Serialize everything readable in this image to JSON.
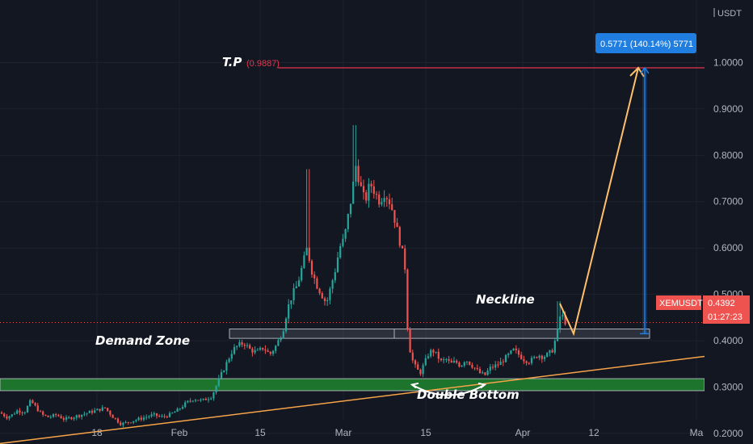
{
  "currency_label": "USDT",
  "chart_data": {
    "type": "candlestick",
    "symbol": "XEMUSDT",
    "last_price": "0.4392",
    "countdown": "01:27:23",
    "y_ticks": [
      "0.2000",
      "0.3000",
      "0.4000",
      "0.5000",
      "0.6000",
      "0.7000",
      "0.8000",
      "0.9000",
      "1.0000"
    ],
    "ylim": [
      0.177,
      1.135
    ],
    "x_ticks": [
      "18",
      "Feb",
      "15",
      "Mar",
      "15",
      "Apr",
      "12",
      "Ma"
    ],
    "price_path": [
      [
        0,
        0.245
      ],
      [
        8,
        0.235
      ],
      [
        15,
        0.24
      ],
      [
        22,
        0.25
      ],
      [
        30,
        0.245
      ],
      [
        38,
        0.27
      ],
      [
        45,
        0.255
      ],
      [
        52,
        0.24
      ],
      [
        60,
        0.235
      ],
      [
        70,
        0.24
      ],
      [
        80,
        0.23
      ],
      [
        90,
        0.235
      ],
      [
        100,
        0.24
      ],
      [
        110,
        0.245
      ],
      [
        120,
        0.25
      ],
      [
        130,
        0.255
      ],
      [
        140,
        0.235
      ],
      [
        150,
        0.22
      ],
      [
        160,
        0.225
      ],
      [
        170,
        0.23
      ],
      [
        180,
        0.235
      ],
      [
        190,
        0.24
      ],
      [
        200,
        0.235
      ],
      [
        210,
        0.24
      ],
      [
        220,
        0.25
      ],
      [
        230,
        0.265
      ],
      [
        240,
        0.275
      ],
      [
        250,
        0.27
      ],
      [
        262,
        0.28
      ],
      [
        272,
        0.32
      ],
      [
        280,
        0.35
      ],
      [
        288,
        0.38
      ],
      [
        295,
        0.39
      ],
      [
        302,
        0.395
      ],
      [
        310,
        0.38
      ],
      [
        318,
        0.375
      ],
      [
        326,
        0.385
      ],
      [
        334,
        0.37
      ],
      [
        342,
        0.39
      ],
      [
        350,
        0.42
      ],
      [
        356,
        0.47
      ],
      [
        362,
        0.5
      ],
      [
        368,
        0.52
      ],
      [
        374,
        0.56
      ],
      [
        380,
        0.6
      ],
      [
        386,
        0.55
      ],
      [
        392,
        0.52
      ],
      [
        398,
        0.5
      ],
      [
        404,
        0.48
      ],
      [
        410,
        0.52
      ],
      [
        416,
        0.56
      ],
      [
        420,
        0.6
      ],
      [
        426,
        0.62
      ],
      [
        432,
        0.68
      ],
      [
        436,
        0.72
      ],
      [
        440,
        0.78
      ],
      [
        444,
        0.75
      ],
      [
        448,
        0.72
      ],
      [
        452,
        0.7
      ],
      [
        458,
        0.74
      ],
      [
        464,
        0.72
      ],
      [
        470,
        0.7
      ],
      [
        476,
        0.72
      ],
      [
        482,
        0.7
      ],
      [
        486,
        0.68
      ],
      [
        490,
        0.65
      ],
      [
        494,
        0.62
      ],
      [
        498,
        0.59
      ],
      [
        502,
        0.55
      ],
      [
        505,
        0.4
      ],
      [
        510,
        0.36
      ],
      [
        515,
        0.34
      ],
      [
        520,
        0.33
      ],
      [
        525,
        0.35
      ],
      [
        530,
        0.37
      ],
      [
        535,
        0.38
      ],
      [
        540,
        0.37
      ],
      [
        546,
        0.355
      ],
      [
        552,
        0.36
      ],
      [
        558,
        0.35
      ],
      [
        564,
        0.355
      ],
      [
        570,
        0.345
      ],
      [
        576,
        0.36
      ],
      [
        582,
        0.35
      ],
      [
        588,
        0.34
      ],
      [
        594,
        0.33
      ],
      [
        600,
        0.325
      ],
      [
        606,
        0.34
      ],
      [
        612,
        0.345
      ],
      [
        618,
        0.35
      ],
      [
        624,
        0.36
      ],
      [
        630,
        0.37
      ],
      [
        636,
        0.38
      ],
      [
        642,
        0.37
      ],
      [
        648,
        0.36
      ],
      [
        654,
        0.355
      ],
      [
        660,
        0.36
      ],
      [
        666,
        0.37
      ],
      [
        672,
        0.365
      ],
      [
        678,
        0.37
      ],
      [
        684,
        0.38
      ],
      [
        690,
        0.42
      ],
      [
        694,
        0.46
      ],
      [
        697,
        0.45
      ],
      [
        700,
        0.439
      ]
    ],
    "annotations": {
      "target_label": "T.P",
      "target_value": "(0.9887)",
      "target_price": 0.9887,
      "neckline_label": "Neckline",
      "demand_zone_label": "Demand Zone",
      "double_bottom_label": "Double Bottom",
      "measure_badge": "0.5771 (140.14%) 5771",
      "neckline_zone": [
        0.405,
        0.425
      ],
      "demand_zone": [
        0.292,
        0.318
      ],
      "trendline_start": [
        0,
        0.178
      ],
      "trendline_end": [
        932,
        0.37
      ]
    },
    "colors": {
      "background": "#131722",
      "up": "#26a69a",
      "down": "#ef5350",
      "target_line": "#e5364d",
      "trendline": "#f7a348",
      "projection": "#ffc06b",
      "demand_zone": "#1e7a2e",
      "badge": "#1f7ee0",
      "price_label": "#ef5350"
    }
  }
}
